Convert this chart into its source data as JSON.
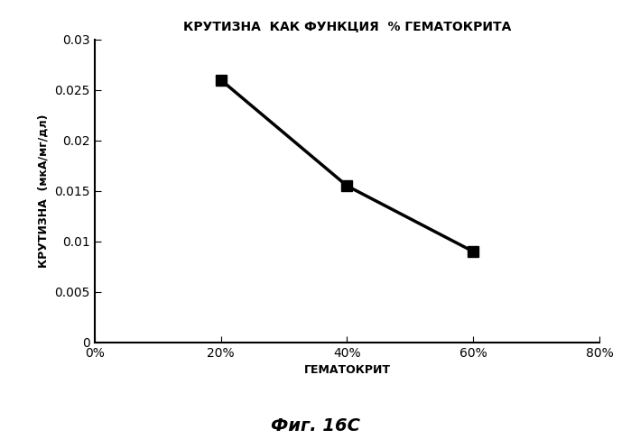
{
  "title": "КРУТИЗНА  КАК ФУНКЦИЯ  % ГЕМАТОКРИТА",
  "xlabel": "ГЕМАТОКРИТ",
  "ylabel": "КРУТИЗНА  (мкА/мг/дл)",
  "x_values": [
    20,
    40,
    60
  ],
  "y_values": [
    0.026,
    0.0155,
    0.009
  ],
  "xlim": [
    0,
    80
  ],
  "ylim": [
    0,
    0.03
  ],
  "xticks": [
    0,
    20,
    40,
    60,
    80
  ],
  "yticks": [
    0,
    0.005,
    0.01,
    0.015,
    0.02,
    0.025,
    0.03
  ],
  "line_color": "#000000",
  "marker": "s",
  "marker_size": 9,
  "line_width": 2.5,
  "caption": "Фиг. 16С",
  "background_color": "#ffffff",
  "title_fontsize": 10,
  "label_fontsize": 9,
  "tick_fontsize": 10,
  "caption_fontsize": 14
}
